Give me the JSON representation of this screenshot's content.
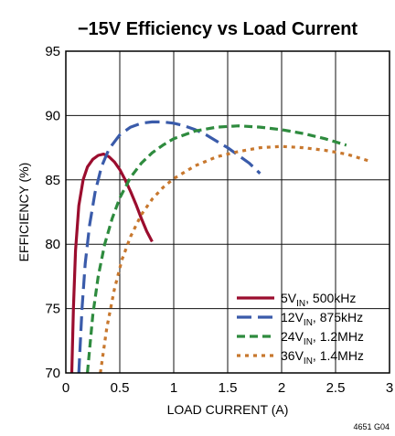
{
  "chart_data": {
    "type": "line",
    "title": "−15V Efficiency vs Load Current",
    "xlabel": "LOAD CURRENT (A)",
    "ylabel": "EFFICIENCY (%)",
    "xlim": [
      0,
      3
    ],
    "ylim": [
      70,
      95
    ],
    "x_ticks": [
      0,
      0.5,
      1,
      1.5,
      2,
      2.5,
      3
    ],
    "x_tick_labels": [
      "0",
      "0.5",
      "1",
      "1.5",
      "2",
      "2.5",
      "3"
    ],
    "y_ticks": [
      70,
      75,
      80,
      85,
      90,
      95
    ],
    "y_tick_labels": [
      "70",
      "75",
      "80",
      "85",
      "90",
      "95"
    ],
    "grid": true,
    "legend_position": "bottom-right",
    "footnote": "4651 G04",
    "series": [
      {
        "name": "5VIN, 500kHz",
        "legend_main": "5V",
        "legend_sub": "IN",
        "legend_rest": ", 500kHz",
        "color": "#9B0D2E",
        "dash": "solid",
        "x": [
          0.055,
          0.07,
          0.09,
          0.12,
          0.16,
          0.2,
          0.25,
          0.3,
          0.35,
          0.4,
          0.45,
          0.5,
          0.55,
          0.6,
          0.65,
          0.7,
          0.75,
          0.8
        ],
        "y": [
          70,
          75,
          79.5,
          83,
          85,
          86,
          86.6,
          86.9,
          87.0,
          86.8,
          86.4,
          85.8,
          85.0,
          84.1,
          83.1,
          82.0,
          81.0,
          80.2
        ]
      },
      {
        "name": "12VIN, 875kHz",
        "legend_main": "12V",
        "legend_sub": "IN",
        "legend_rest": ", 875kHz",
        "color": "#3A5BAA",
        "dash": "long-dash",
        "x": [
          0.12,
          0.15,
          0.18,
          0.22,
          0.27,
          0.33,
          0.4,
          0.5,
          0.6,
          0.7,
          0.8,
          0.9,
          1.0,
          1.1,
          1.2,
          1.3,
          1.4,
          1.5,
          1.6,
          1.7,
          1.8
        ],
        "y": [
          70,
          75,
          78.5,
          81.5,
          84,
          86,
          87.4,
          88.5,
          89.1,
          89.4,
          89.5,
          89.5,
          89.4,
          89.2,
          88.9,
          88.5,
          88.0,
          87.5,
          86.9,
          86.3,
          85.5
        ]
      },
      {
        "name": "24VIN, 1.2MHz",
        "legend_main": "24V",
        "legend_sub": "IN",
        "legend_rest": ", 1.2MHz",
        "color": "#2E8B3E",
        "dash": "dash",
        "x": [
          0.2,
          0.25,
          0.3,
          0.36,
          0.43,
          0.5,
          0.6,
          0.7,
          0.8,
          0.9,
          1.0,
          1.2,
          1.4,
          1.6,
          1.8,
          2.0,
          2.2,
          2.4,
          2.6
        ],
        "y": [
          70,
          74.5,
          77.5,
          80,
          82,
          83.6,
          85.2,
          86.3,
          87.1,
          87.7,
          88.2,
          88.8,
          89.1,
          89.2,
          89.1,
          88.9,
          88.6,
          88.2,
          87.7
        ]
      },
      {
        "name": "36VIN, 1.4MHz",
        "legend_main": "36V",
        "legend_sub": "IN",
        "legend_rest": ", 1.4MHz",
        "color": "#C8782E",
        "dash": "dot",
        "x": [
          0.32,
          0.38,
          0.45,
          0.52,
          0.6,
          0.7,
          0.8,
          0.9,
          1.0,
          1.2,
          1.4,
          1.6,
          1.8,
          2.0,
          2.2,
          2.4,
          2.6,
          2.8
        ],
        "y": [
          70,
          73.5,
          76.5,
          78.8,
          80.6,
          82.3,
          83.5,
          84.4,
          85.1,
          86.1,
          86.8,
          87.2,
          87.5,
          87.6,
          87.5,
          87.3,
          87.0,
          86.5
        ]
      }
    ]
  }
}
